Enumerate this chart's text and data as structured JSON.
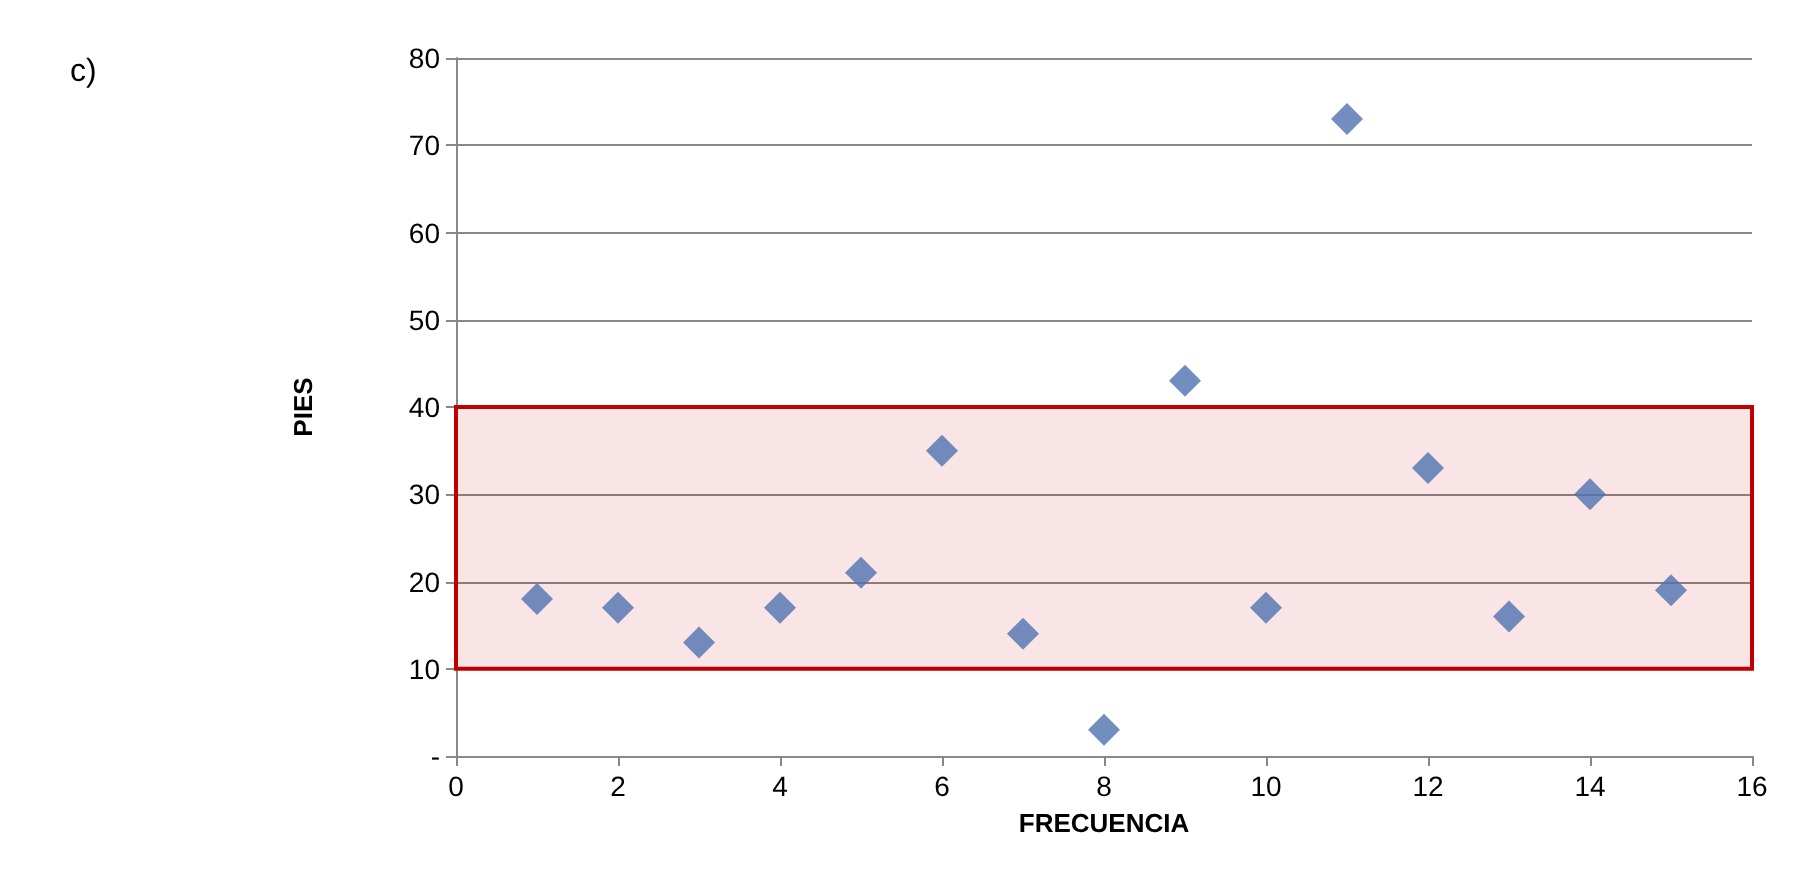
{
  "chart_data": {
    "type": "scatter",
    "xlabel": "FRECUENCIA",
    "ylabel": "PIES",
    "annotations": [
      "c)"
    ],
    "x": [
      1,
      2,
      3,
      4,
      5,
      6,
      7,
      8,
      9,
      10,
      11,
      12,
      13,
      14,
      15
    ],
    "series": [
      {
        "color": "#4f72b0",
        "values": [
          18,
          17,
          13,
          17,
          21,
          35,
          14,
          3,
          43,
          17,
          73,
          33,
          16,
          30,
          19
        ]
      }
    ],
    "xlim": [
      0,
      16
    ],
    "xticks": [
      0,
      2,
      4,
      6,
      8,
      10,
      12,
      14,
      16
    ],
    "ylim": [
      0,
      80
    ],
    "yticks": [
      {
        "value": 0,
        "label": "-"
      },
      10,
      20,
      30,
      40,
      50,
      60,
      70,
      80
    ],
    "bands": [
      {
        "axis": "y",
        "from": 10,
        "to": 40,
        "color": "#c00000"
      }
    ],
    "grid": "y",
    "marker": "diamond"
  }
}
